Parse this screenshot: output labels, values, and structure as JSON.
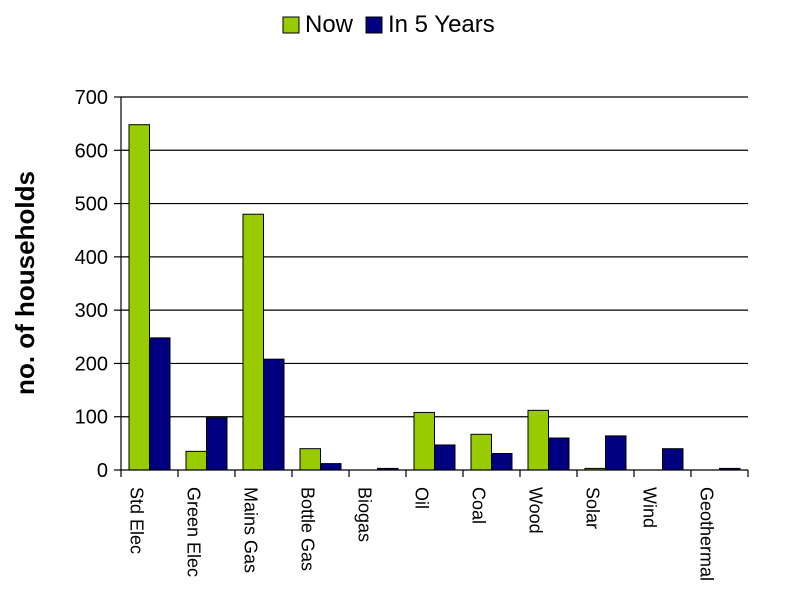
{
  "chart_data": {
    "type": "bar",
    "title": "",
    "xlabel": "",
    "ylabel": "no. of households",
    "categories": [
      "Std Elec",
      "Green Elec",
      "Mains Gas",
      "Bottle Gas",
      "Biogas",
      "Oil",
      "Coal",
      "Wood",
      "Solar",
      "Wind",
      "Geothermal"
    ],
    "series": [
      {
        "name": "Now",
        "color": "#99cc00",
        "values": [
          648,
          35,
          480,
          40,
          0,
          108,
          67,
          112,
          3,
          0,
          0
        ]
      },
      {
        "name": "In 5 Years",
        "color": "#000080",
        "values": [
          248,
          98,
          208,
          12,
          3,
          47,
          31,
          60,
          64,
          40,
          3
        ]
      }
    ],
    "ylim": [
      0,
      700
    ],
    "yticks": [
      0,
      100,
      200,
      300,
      400,
      500,
      600,
      700
    ],
    "grid": true,
    "legend_position": "top-center"
  }
}
